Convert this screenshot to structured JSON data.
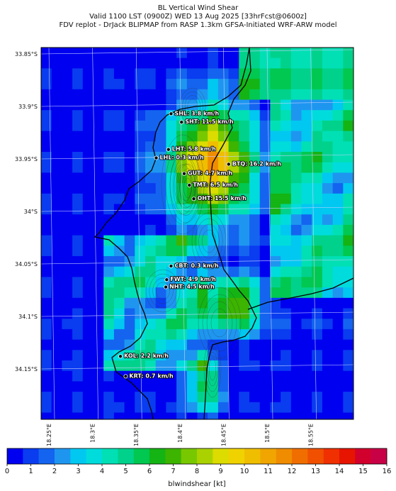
{
  "title": {
    "line1": "BL Vertical Wind Shear",
    "line2": "Valid 1100 LST (0900Z) WED 13 Aug 2025 [33hrFcst@0600z]",
    "line3": "FDV replot - DrJack BLIPMAP from RASP 1.3km GFSA-Initiated WRF-ARW model"
  },
  "map": {
    "lat_labels": [
      "33.85°S",
      "33.9°S",
      "33.95°S",
      "34°S",
      "34.05°S",
      "34.1°S",
      "34.15°S"
    ],
    "lon_labels": [
      "18.25°E",
      "18.3°E",
      "18.35°E",
      "18.4°E",
      "18.45°E",
      "18.5°E",
      "18.55°E"
    ],
    "lat_values": [
      -33.85,
      -33.9,
      -33.95,
      -34.0,
      -34.05,
      -34.1,
      -34.15
    ],
    "lon_values": [
      18.25,
      18.3,
      18.35,
      18.4,
      18.45,
      18.5,
      18.55
    ],
    "stations": [
      {
        "label": "SHL: 3.8 km/h",
        "lon": 18.39,
        "lat": -33.907,
        "value_kmh": 3.8
      },
      {
        "label": "SHT: 11.5 km/h",
        "lon": 18.402,
        "lat": -33.915,
        "value_kmh": 11.5
      },
      {
        "label": "LHT: 5.8 km/h",
        "lon": 18.387,
        "lat": -33.941,
        "value_kmh": 5.8
      },
      {
        "label": "LHL: 0.3 km/h",
        "lon": 18.373,
        "lat": -33.949,
        "value_kmh": 0.3
      },
      {
        "label": "BTQ: 16.2 km/h",
        "lon": 18.456,
        "lat": -33.955,
        "value_kmh": 16.2
      },
      {
        "label": "GUT: 4.7 km/h",
        "lon": 18.405,
        "lat": -33.964,
        "value_kmh": 4.7
      },
      {
        "label": "TMT: 6.5 km/h",
        "lon": 18.411,
        "lat": -33.975,
        "value_kmh": 6.5
      },
      {
        "label": "OHT: 15.5 km/h",
        "lon": 18.416,
        "lat": -33.988,
        "value_kmh": 15.5
      },
      {
        "label": "CBT: 0.3 km/h",
        "lon": 18.39,
        "lat": -34.052,
        "value_kmh": 0.3
      },
      {
        "label": "FWT: 4.9 km/h",
        "lon": 18.385,
        "lat": -34.065,
        "value_kmh": 4.9
      },
      {
        "label": "NHT: 4.5 km/h",
        "lon": 18.384,
        "lat": -34.072,
        "value_kmh": 4.5
      },
      {
        "label": "KOL: 2.2 km/h",
        "lon": 18.332,
        "lat": -34.138,
        "value_kmh": 2.2
      },
      {
        "label": "KRT: 0.7 km/h",
        "lon": 18.338,
        "lat": -34.157,
        "value_kmh": 0.7
      }
    ]
  },
  "colorbar": {
    "label": "blwindshear [kt]",
    "ticks": [
      "0",
      "1",
      "2",
      "3",
      "4",
      "5",
      "6",
      "7",
      "8",
      "9",
      "10",
      "11",
      "12",
      "13",
      "14",
      "15",
      "16"
    ],
    "range": [
      0,
      16
    ],
    "colors": [
      "#0000f0",
      "#0a3cf0",
      "#1464f0",
      "#1e96f0",
      "#00c8f0",
      "#00dcdc",
      "#00e0b4",
      "#00d28c",
      "#00c850",
      "#14b414",
      "#3cb400",
      "#78c800",
      "#aad200",
      "#dcdc00",
      "#f0d200",
      "#f0be00",
      "#f0a500",
      "#f08c00",
      "#f06e00",
      "#f05000",
      "#f03000",
      "#e61400",
      "#d2002d",
      "#c80046"
    ]
  },
  "palette": {
    "coast": "#000000",
    "grid": "#c8d2ff",
    "frame": "#000000"
  }
}
